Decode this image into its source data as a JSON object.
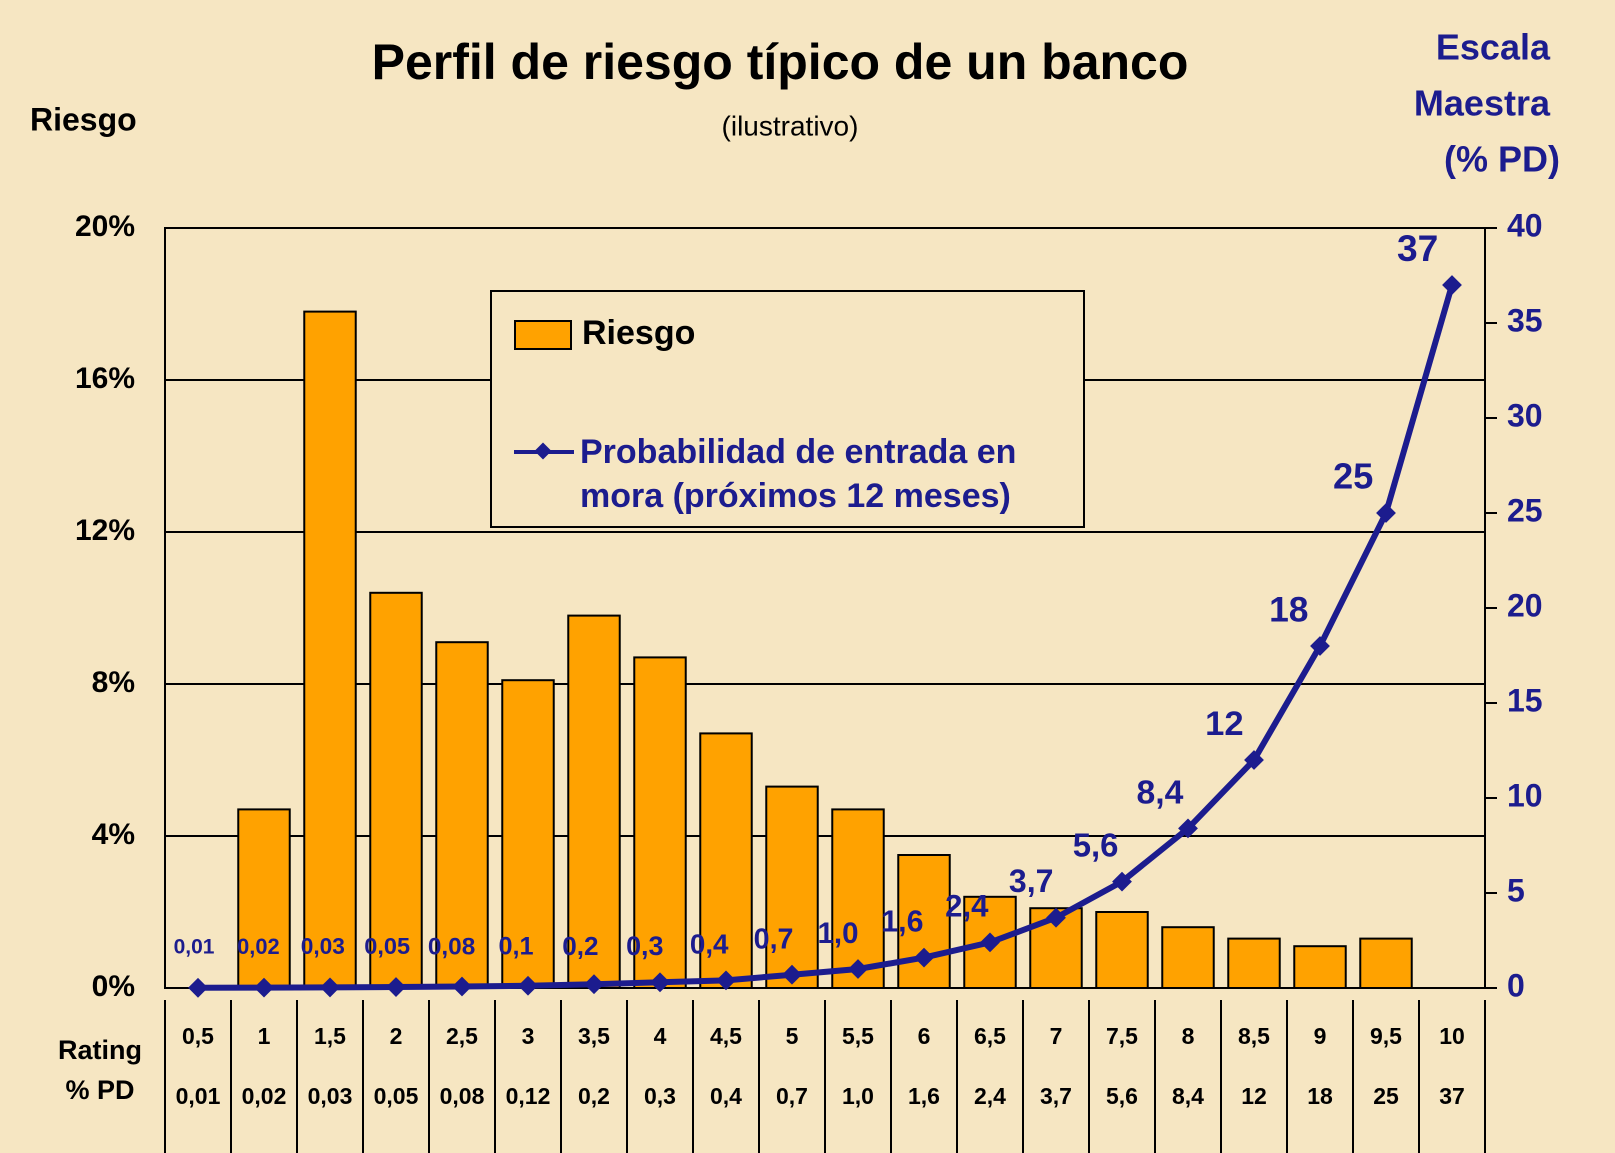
{
  "chart_data": {
    "type": "bar",
    "title": "Perfil de riesgo típico de un banco",
    "subtitle": "(ilustrativo)",
    "y_label": "Riesgo",
    "y2_label": [
      "Escala",
      "Maestra",
      "(% PD)"
    ],
    "row_labels": [
      "Rating",
      "% PD"
    ],
    "categories": [
      "0,5",
      "1",
      "1,5",
      "2",
      "2,5",
      "3",
      "3,5",
      "4",
      "4,5",
      "5",
      "5,5",
      "6",
      "6,5",
      "7",
      "7,5",
      "8",
      "8,5",
      "9",
      "9,5",
      "10"
    ],
    "pd_labels": [
      "0,01",
      "0,02",
      "0,03",
      "0,05",
      "0,08",
      "0,12",
      "0,2",
      "0,3",
      "0,4",
      "0,7",
      "1,0",
      "1,6",
      "2,4",
      "3,7",
      "5,6",
      "8,4",
      "12",
      "18",
      "25",
      "37"
    ],
    "series": [
      {
        "name": "Riesgo",
        "type": "bar",
        "color": "#ffa200",
        "values": [
          null,
          4.7,
          17.8,
          10.4,
          9.1,
          8.1,
          9.8,
          8.7,
          6.7,
          5.3,
          4.7,
          3.5,
          2.4,
          2.1,
          2.0,
          1.6,
          1.3,
          1.1,
          1.3,
          null
        ]
      },
      {
        "name": "Probabilidad de entrada en mora (próximos 12 meses)",
        "type": "line",
        "axis": "y2",
        "color": "#1c1c8e",
        "values": [
          0.01,
          0.02,
          0.03,
          0.05,
          0.08,
          0.12,
          0.2,
          0.3,
          0.4,
          0.7,
          1.0,
          1.6,
          2.4,
          3.7,
          5.6,
          8.4,
          12,
          18,
          25,
          37
        ],
        "value_labels": [
          "0,01",
          "0,02",
          "0,03",
          "0,05",
          "0,08",
          "0,1",
          "0,2",
          "0,3",
          "0,4",
          "0,7",
          "1,0",
          "1,6",
          "2,4",
          "3,7",
          "5,6",
          "8,4",
          "12",
          "18",
          "25",
          "37"
        ]
      }
    ],
    "ylim": [
      0,
      20
    ],
    "yticks": [
      {
        "value": 0,
        "label": "0%"
      },
      {
        "value": 4,
        "label": "4%"
      },
      {
        "value": 8,
        "label": "8%"
      },
      {
        "value": 12,
        "label": "12%"
      },
      {
        "value": 16,
        "label": "16%"
      },
      {
        "value": 20,
        "label": "20%"
      }
    ],
    "y2lim": [
      0,
      40
    ],
    "y2ticks": [
      0,
      5,
      10,
      15,
      20,
      25,
      30,
      35,
      40
    ],
    "grid": true
  }
}
